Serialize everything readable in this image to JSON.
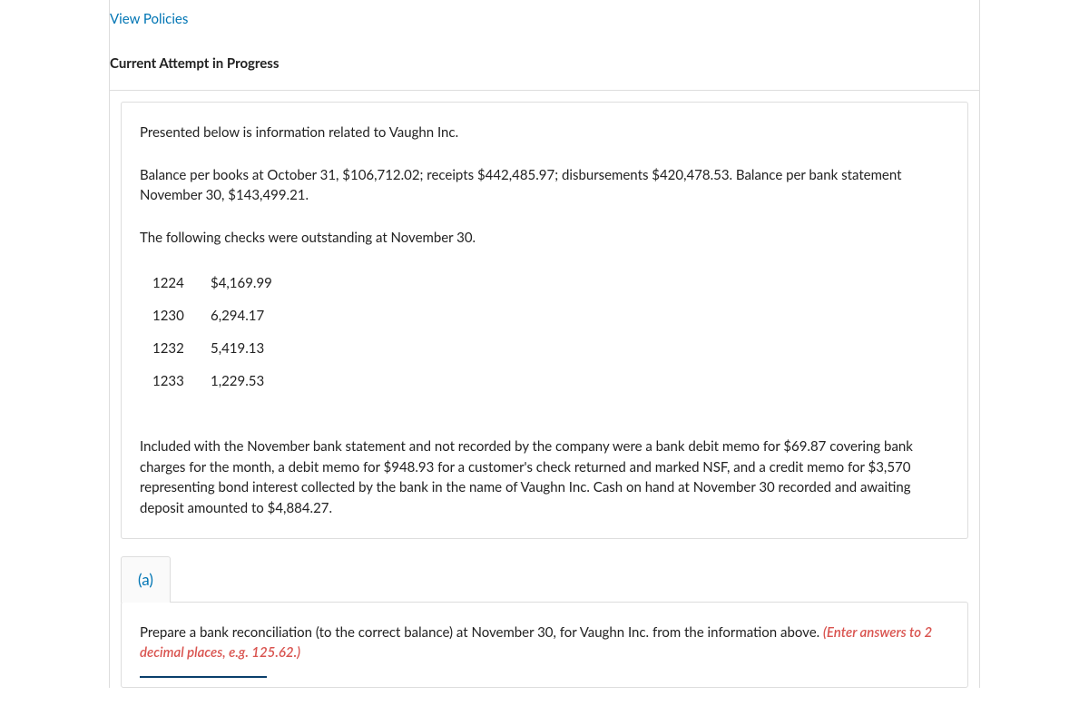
{
  "colors": {
    "link": "#0075b4",
    "text": "#222222",
    "border": "#dddddd",
    "hint": "#d9534f"
  },
  "header": {
    "view_policies": "View Policies",
    "attempt_status": "Current Attempt in Progress"
  },
  "problem": {
    "intro": "Presented below is information related to Vaughn Inc.",
    "balances": "Balance per books at October 31, $106,712.02; receipts $442,485.97; disbursements $420,478.53. Balance per bank statement November 30, $143,499.21.",
    "outstanding_intro": "The following checks were outstanding at November 30.",
    "checks": [
      {
        "num": "1224",
        "amount": "$4,169.99"
      },
      {
        "num": "1230",
        "amount": "6,294.17"
      },
      {
        "num": "1232",
        "amount": "5,419.13"
      },
      {
        "num": "1233",
        "amount": "1,229.53"
      }
    ],
    "memo_paragraph": "Included with the November bank statement and not recorded by the company were a bank debit memo for $69.87 covering bank charges for the month, a debit memo for $948.93 for a customer's check returned and marked NSF, and a credit memo for $3,570 representing bond interest collected by the bank in the name of Vaughn Inc. Cash on hand at November 30 recorded and awaiting deposit amounted to $4,884.27."
  },
  "part_a": {
    "label": "(a)",
    "instruction": "Prepare a bank reconciliation (to the correct balance) at November 30, for Vaughn Inc. from the information above. ",
    "hint": "(Enter answers to 2 decimal places, e.g. 125.62.)"
  }
}
